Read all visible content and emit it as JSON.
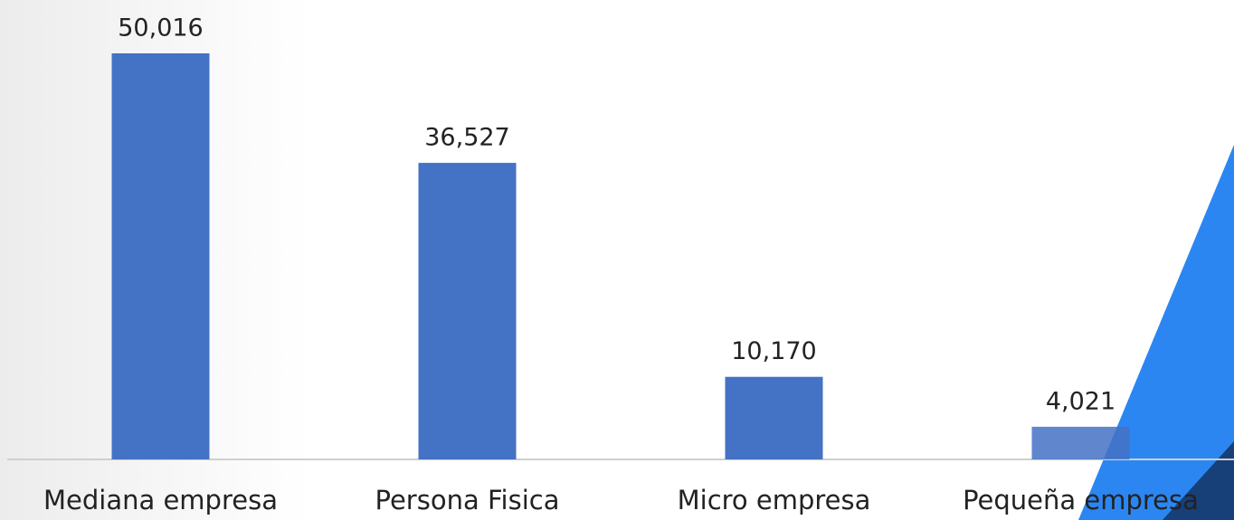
{
  "chart_data": {
    "type": "bar",
    "categories": [
      "Mediana empresa",
      "Persona Fisica",
      "Micro empresa",
      "Pequeña empresa"
    ],
    "values": [
      50016,
      36527,
      10170,
      4021
    ],
    "value_labels": [
      "50,016",
      "36,527",
      "10,170",
      "4,021"
    ],
    "color": "#4472c4"
  }
}
